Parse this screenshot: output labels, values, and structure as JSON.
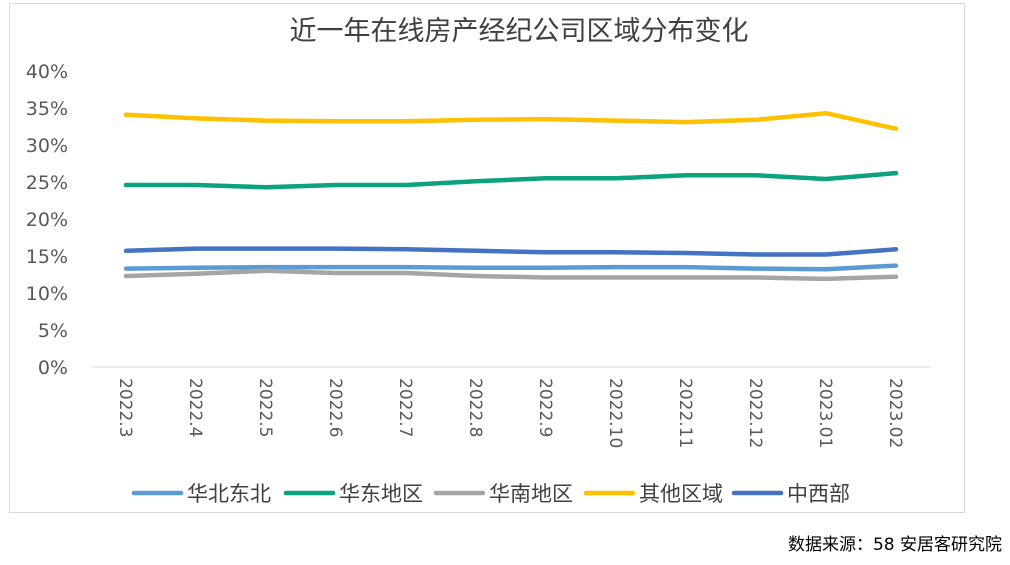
{
  "source_note": "数据来源：58 安居客研究院",
  "chart_data": {
    "type": "line",
    "title": "近一年在线房产经纪公司区域分布变化",
    "xlabel": "",
    "ylabel": "",
    "ylim": [
      0,
      0.4
    ],
    "yticks": [
      0,
      0.05,
      0.1,
      0.15,
      0.2,
      0.25,
      0.3,
      0.35,
      0.4
    ],
    "ytick_labels": [
      "0%",
      "5%",
      "10%",
      "15%",
      "20%",
      "25%",
      "30%",
      "35%",
      "40%"
    ],
    "grid": false,
    "legend_position": "bottom",
    "categories": [
      "2022.3",
      "2022.4",
      "2022.5",
      "2022.6",
      "2022.7",
      "2022.8",
      "2022.9",
      "2022.10",
      "2022.11",
      "2022.12",
      "2023.01",
      "2023.02"
    ],
    "series": [
      {
        "name": "华北东北",
        "color": "#5B9BD5",
        "values": [
          0.133,
          0.134,
          0.135,
          0.135,
          0.135,
          0.134,
          0.134,
          0.135,
          0.135,
          0.133,
          0.132,
          0.137
        ]
      },
      {
        "name": "华东地区",
        "color": "#0BA37F",
        "values": [
          0.246,
          0.246,
          0.243,
          0.246,
          0.246,
          0.251,
          0.255,
          0.255,
          0.259,
          0.259,
          0.254,
          0.262
        ]
      },
      {
        "name": "华南地区",
        "color": "#A5A5A5",
        "values": [
          0.123,
          0.126,
          0.13,
          0.127,
          0.127,
          0.123,
          0.121,
          0.121,
          0.121,
          0.121,
          0.119,
          0.122
        ]
      },
      {
        "name": "其他区域",
        "color": "#FFC000",
        "values": [
          0.341,
          0.336,
          0.333,
          0.332,
          0.332,
          0.334,
          0.335,
          0.333,
          0.331,
          0.334,
          0.343,
          0.322
        ]
      },
      {
        "name": "中西部",
        "color": "#4472C4",
        "values": [
          0.157,
          0.16,
          0.16,
          0.16,
          0.159,
          0.157,
          0.155,
          0.155,
          0.154,
          0.152,
          0.152,
          0.159
        ]
      }
    ]
  }
}
